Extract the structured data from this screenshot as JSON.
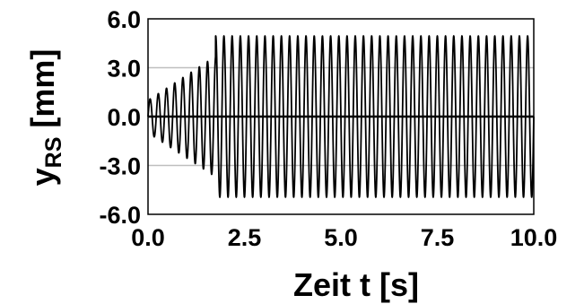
{
  "chart_data": {
    "type": "line",
    "xlabel": "Zeit t [s]",
    "ylabel": {
      "main": "y",
      "subscript": "RS",
      "unit": " [mm]"
    },
    "xlim": [
      0.0,
      10.0
    ],
    "ylim": [
      -6.0,
      6.0
    ],
    "xticks": [
      "0.0",
      "2.5",
      "5.0",
      "7.5",
      "10.0"
    ],
    "yticks": [
      "-6.0",
      "-3.0",
      "0.0",
      "3.0",
      "6.0"
    ],
    "grid": "horizontal",
    "zero_line": true,
    "colors": {
      "line": "#000000",
      "grid": "#bfbfbf",
      "frame": "#000000"
    },
    "series": [
      {
        "signal": "sinusoidal oscillation",
        "frequency_hz": 4.7,
        "segments": [
          {
            "t_start": 0.0,
            "t_end": 1.75,
            "amplitude_start": 1.0,
            "amplitude_end": 3.7
          },
          {
            "t_start": 1.75,
            "t_end": 10.0,
            "amplitude_start": 4.95,
            "amplitude_end": 4.95
          }
        ]
      }
    ]
  }
}
